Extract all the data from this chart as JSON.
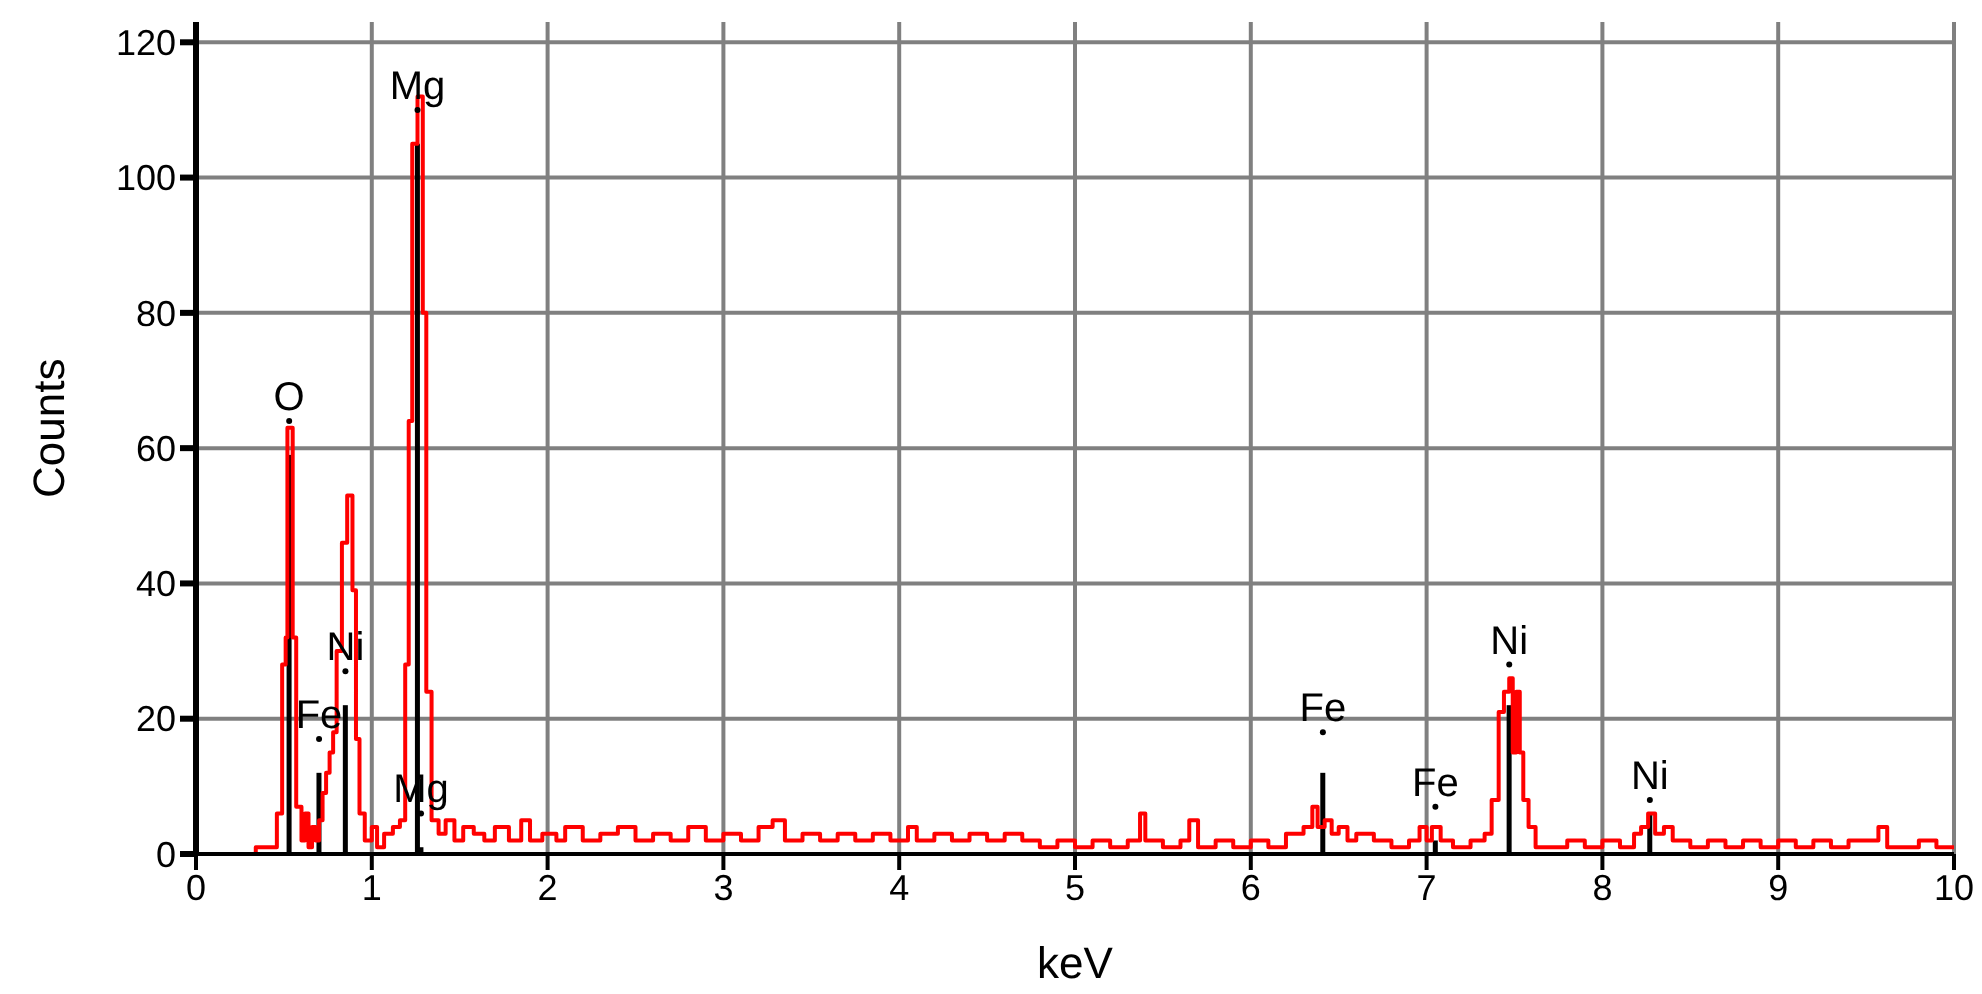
{
  "chart_data": {
    "type": "step",
    "xlabel": "keV",
    "ylabel": "Counts",
    "xlim": [
      0,
      10
    ],
    "xticks": [
      0,
      1,
      2,
      3,
      4,
      5,
      6,
      7,
      8,
      9,
      10
    ],
    "ylim": [
      0,
      123
    ],
    "yticks": [
      0,
      20,
      40,
      60,
      80,
      100,
      120
    ],
    "grid": true,
    "marker": "none",
    "series": [
      {
        "color": "#ff0000",
        "x": [
          0,
          0.3,
          0.34,
          0.42,
          0.46,
          0.49,
          0.51,
          0.52,
          0.54,
          0.55,
          0.57,
          0.6,
          0.62,
          0.64,
          0.66,
          0.68,
          0.7,
          0.72,
          0.74,
          0.76,
          0.78,
          0.8,
          0.83,
          0.86,
          0.89,
          0.91,
          0.93,
          0.96,
          1.0,
          1.03,
          1.07,
          1.12,
          1.16,
          1.19,
          1.21,
          1.23,
          1.26,
          1.29,
          1.31,
          1.34,
          1.38,
          1.42,
          1.47,
          1.52,
          1.58,
          1.64,
          1.7,
          1.78,
          1.85,
          1.9,
          1.97,
          2.05,
          2.1,
          2.2,
          2.3,
          2.4,
          2.5,
          2.6,
          2.7,
          2.8,
          2.9,
          3.0,
          3.1,
          3.2,
          3.28,
          3.35,
          3.45,
          3.55,
          3.65,
          3.75,
          3.85,
          3.95,
          4.05,
          4.1,
          4.2,
          4.3,
          4.4,
          4.5,
          4.6,
          4.7,
          4.8,
          4.9,
          5.0,
          5.1,
          5.2,
          5.3,
          5.37,
          5.4,
          5.5,
          5.6,
          5.65,
          5.7,
          5.8,
          5.9,
          6.0,
          6.1,
          6.2,
          6.3,
          6.35,
          6.38,
          6.42,
          6.46,
          6.5,
          6.55,
          6.6,
          6.7,
          6.8,
          6.9,
          6.96,
          7.0,
          7.03,
          7.08,
          7.15,
          7.25,
          7.33,
          7.37,
          7.41,
          7.44,
          7.47,
          7.49,
          7.51,
          7.53,
          7.55,
          7.58,
          7.62,
          7.7,
          7.8,
          7.9,
          8.0,
          8.1,
          8.18,
          8.22,
          8.26,
          8.3,
          8.35,
          8.4,
          8.5,
          8.6,
          8.7,
          8.8,
          8.9,
          9.0,
          9.1,
          9.2,
          9.3,
          9.4,
          9.5,
          9.57,
          9.62,
          9.7,
          9.8,
          9.9,
          10.0
        ],
        "values": [
          0,
          0,
          1,
          1,
          6,
          28,
          32,
          63,
          63,
          32,
          7,
          2,
          6,
          1,
          4,
          2,
          5,
          9,
          12,
          15,
          18,
          30,
          46,
          53,
          39,
          17,
          6,
          2,
          4,
          1,
          3,
          4,
          5,
          28,
          64,
          105,
          112,
          80,
          24,
          5,
          3,
          5,
          2,
          4,
          3,
          2,
          4,
          2,
          5,
          2,
          3,
          2,
          4,
          2,
          3,
          4,
          2,
          3,
          2,
          4,
          2,
          3,
          2,
          4,
          5,
          2,
          3,
          2,
          3,
          2,
          3,
          2,
          4,
          2,
          3,
          2,
          3,
          2,
          3,
          2,
          1,
          2,
          1,
          2,
          1,
          2,
          6,
          2,
          1,
          2,
          5,
          1,
          2,
          1,
          2,
          1,
          3,
          4,
          7,
          4,
          5,
          3,
          4,
          2,
          3,
          2,
          1,
          2,
          4,
          2,
          4,
          2,
          1,
          2,
          3,
          8,
          21,
          24,
          26,
          15,
          24,
          15,
          8,
          4,
          1,
          1,
          2,
          1,
          2,
          1,
          3,
          4,
          6,
          3,
          4,
          2,
          1,
          2,
          1,
          2,
          1,
          2,
          1,
          2,
          1,
          2,
          2,
          4,
          1,
          1,
          2,
          1,
          1
        ]
      },
      {
        "type": "bar",
        "color": "#000000",
        "x": [
          0.53,
          0.7,
          0.85,
          1.26,
          1.28,
          6.41,
          7.05,
          7.47,
          8.27
        ],
        "values": [
          59,
          12,
          22,
          105,
          1,
          12,
          2,
          22,
          6
        ]
      }
    ],
    "annotations": [
      {
        "text": "O",
        "x": 0.53,
        "y": 64
      },
      {
        "text": "Fe",
        "x": 0.7,
        "y": 17
      },
      {
        "text": "Ni",
        "x": 0.85,
        "y": 27
      },
      {
        "text": "Mg",
        "x": 1.26,
        "y": 110
      },
      {
        "text": "Mg",
        "x": 1.28,
        "y": 6
      },
      {
        "text": "Fe",
        "x": 6.41,
        "y": 18
      },
      {
        "text": "Fe",
        "x": 7.05,
        "y": 7
      },
      {
        "text": "Ni",
        "x": 7.47,
        "y": 28
      },
      {
        "text": "Ni",
        "x": 8.27,
        "y": 8
      }
    ]
  }
}
